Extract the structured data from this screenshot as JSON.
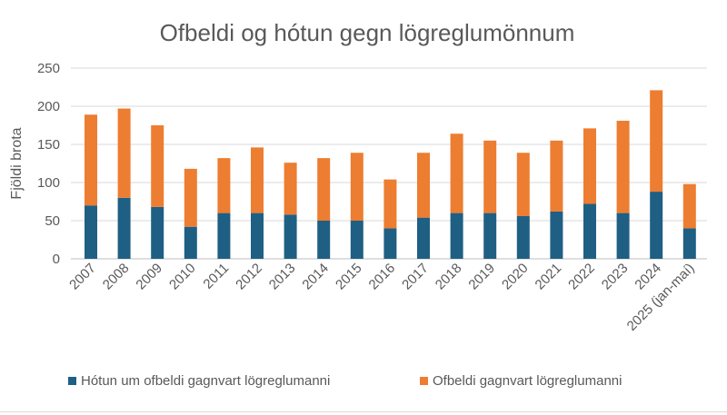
{
  "chart_data": {
    "type": "bar",
    "stacked": true,
    "title": "Ofbeldi og hótun gegn lögreglumönnum",
    "xlabel": "",
    "ylabel": "Fjöldi brota",
    "ylim": [
      0,
      250
    ],
    "yticks": [
      0,
      50,
      100,
      150,
      200,
      250
    ],
    "grid": true,
    "legend_position": "bottom",
    "categories": [
      "2007",
      "2008",
      "2009",
      "2010",
      "2011",
      "2012",
      "2013",
      "2014",
      "2015",
      "2016",
      "2017",
      "2018",
      "2019",
      "2020",
      "2021",
      "2022",
      "2023",
      "2024",
      "2025 (jan-maí)"
    ],
    "series": [
      {
        "name": "Hótun um ofbeldi gagnvart lögreglumanni",
        "color": "#1f5f84",
        "values": [
          70,
          80,
          68,
          42,
          60,
          60,
          58,
          50,
          50,
          40,
          54,
          60,
          60,
          56,
          62,
          72,
          60,
          88,
          40
        ]
      },
      {
        "name": "Ofbeldi gagnvart lögreglumanni",
        "color": "#ed7d31",
        "values": [
          119,
          117,
          107,
          76,
          72,
          86,
          68,
          82,
          89,
          64,
          85,
          104,
          95,
          83,
          93,
          99,
          121,
          133,
          58
        ]
      }
    ]
  }
}
